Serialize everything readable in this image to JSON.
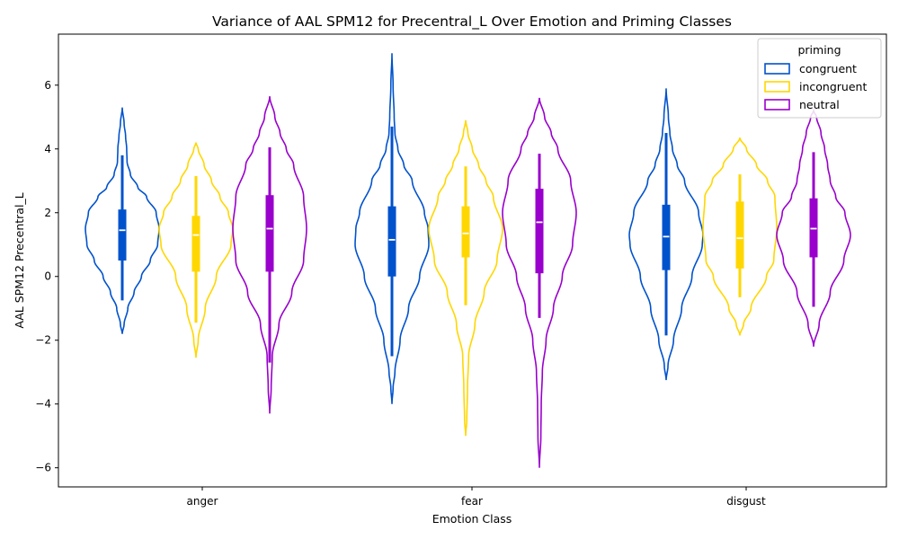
{
  "chart_data": {
    "type": "violin",
    "title": "Variance of AAL SPM12 for Precentral_L Over Emotion and Priming Classes",
    "xlabel": "Emotion Class",
    "ylabel": "AAL SPM12 Precentral_L",
    "ylim": [
      -6.6,
      7.6
    ],
    "yticks": [
      -6,
      -4,
      -2,
      0,
      2,
      4,
      6
    ],
    "grid": false,
    "categories": [
      "anger",
      "fear",
      "disgust"
    ],
    "legend": {
      "title": "priming",
      "placement": "top-right"
    },
    "series": [
      {
        "name": "congruent",
        "color": "#0052cc",
        "values": [
          {
            "category": "anger",
            "min": -1.8,
            "max": 5.3,
            "q1": 0.5,
            "median": 1.45,
            "q3": 2.1,
            "whisker_low": -0.75,
            "whisker_high": 3.8,
            "profile": [
              [
                -1.8,
                0.0
              ],
              [
                -1.5,
                0.05
              ],
              [
                -1.0,
                0.15
              ],
              [
                -0.5,
                0.32
              ],
              [
                0.0,
                0.52
              ],
              [
                0.5,
                0.76
              ],
              [
                1.0,
                0.96
              ],
              [
                1.5,
                1.0
              ],
              [
                2.0,
                0.92
              ],
              [
                2.5,
                0.66
              ],
              [
                2.8,
                0.42
              ],
              [
                3.2,
                0.22
              ],
              [
                3.6,
                0.13
              ],
              [
                4.0,
                0.12
              ],
              [
                4.4,
                0.09
              ],
              [
                4.8,
                0.05
              ],
              [
                5.3,
                0.0
              ]
            ]
          },
          {
            "category": "fear",
            "min": -4.0,
            "max": 7.0,
            "q1": 0.0,
            "median": 1.15,
            "q3": 2.2,
            "whisker_low": -2.5,
            "whisker_high": 4.7,
            "profile": [
              [
                -4.0,
                0.0
              ],
              [
                -3.5,
                0.03
              ],
              [
                -3.0,
                0.08
              ],
              [
                -2.0,
                0.22
              ],
              [
                -1.0,
                0.45
              ],
              [
                0.0,
                0.75
              ],
              [
                1.0,
                1.0
              ],
              [
                1.5,
                0.98
              ],
              [
                2.0,
                0.88
              ],
              [
                3.0,
                0.55
              ],
              [
                3.5,
                0.32
              ],
              [
                4.0,
                0.16
              ],
              [
                4.5,
                0.08
              ],
              [
                5.0,
                0.06
              ],
              [
                6.0,
                0.03
              ],
              [
                7.0,
                0.0
              ]
            ]
          },
          {
            "category": "disgust",
            "min": -3.25,
            "max": 5.9,
            "q1": 0.2,
            "median": 1.25,
            "q3": 2.25,
            "whisker_low": -1.85,
            "whisker_high": 4.5,
            "profile": [
              [
                -3.25,
                0.0
              ],
              [
                -2.8,
                0.05
              ],
              [
                -2.0,
                0.2
              ],
              [
                -1.0,
                0.42
              ],
              [
                0.0,
                0.7
              ],
              [
                1.0,
                0.98
              ],
              [
                1.3,
                1.0
              ],
              [
                2.0,
                0.88
              ],
              [
                3.0,
                0.5
              ],
              [
                3.5,
                0.3
              ],
              [
                4.0,
                0.17
              ],
              [
                4.5,
                0.1
              ],
              [
                5.0,
                0.06
              ],
              [
                5.9,
                0.0
              ]
            ]
          }
        ]
      },
      {
        "name": "incongruent",
        "color": "#ffd700",
        "values": [
          {
            "category": "anger",
            "min": -2.55,
            "max": 4.2,
            "q1": 0.15,
            "median": 1.3,
            "q3": 1.9,
            "whisker_low": -1.45,
            "whisker_high": 3.15,
            "profile": [
              [
                -2.55,
                0.0
              ],
              [
                -2.0,
                0.06
              ],
              [
                -1.0,
                0.25
              ],
              [
                0.0,
                0.55
              ],
              [
                1.0,
                0.95
              ],
              [
                1.5,
                1.0
              ],
              [
                2.0,
                0.88
              ],
              [
                2.5,
                0.65
              ],
              [
                3.0,
                0.42
              ],
              [
                3.5,
                0.22
              ],
              [
                4.0,
                0.06
              ],
              [
                4.2,
                0.0
              ]
            ]
          },
          {
            "category": "fear",
            "min": -5.0,
            "max": 4.9,
            "q1": 0.6,
            "median": 1.35,
            "q3": 2.2,
            "whisker_low": -0.9,
            "whisker_high": 3.45,
            "profile": [
              [
                -5.0,
                0.0
              ],
              [
                -4.5,
                0.03
              ],
              [
                -3.5,
                0.05
              ],
              [
                -2.5,
                0.08
              ],
              [
                -1.5,
                0.25
              ],
              [
                -0.5,
                0.5
              ],
              [
                0.5,
                0.85
              ],
              [
                1.5,
                1.0
              ],
              [
                2.5,
                0.75
              ],
              [
                3.0,
                0.55
              ],
              [
                3.5,
                0.35
              ],
              [
                4.0,
                0.18
              ],
              [
                4.5,
                0.06
              ],
              [
                4.9,
                0.0
              ]
            ]
          },
          {
            "category": "disgust",
            "min": -1.85,
            "max": 4.35,
            "q1": 0.25,
            "median": 1.2,
            "q3": 2.35,
            "whisker_low": -0.65,
            "whisker_high": 3.2,
            "profile": [
              [
                -1.85,
                0.0
              ],
              [
                -1.5,
                0.1
              ],
              [
                -1.0,
                0.3
              ],
              [
                0.0,
                0.72
              ],
              [
                0.5,
                0.92
              ],
              [
                1.5,
                1.0
              ],
              [
                2.5,
                0.95
              ],
              [
                3.0,
                0.75
              ],
              [
                3.5,
                0.45
              ],
              [
                4.0,
                0.18
              ],
              [
                4.35,
                0.0
              ]
            ]
          }
        ]
      },
      {
        "name": "neutral",
        "color": "#9900cc",
        "values": [
          {
            "category": "anger",
            "min": -4.3,
            "max": 5.65,
            "q1": 0.15,
            "median": 1.5,
            "q3": 2.55,
            "whisker_low": -2.7,
            "whisker_high": 4.05,
            "profile": [
              [
                -4.3,
                0.0
              ],
              [
                -3.5,
                0.04
              ],
              [
                -2.5,
                0.07
              ],
              [
                -1.5,
                0.25
              ],
              [
                -0.5,
                0.6
              ],
              [
                0.5,
                0.92
              ],
              [
                1.5,
                1.0
              ],
              [
                2.5,
                0.92
              ],
              [
                3.5,
                0.65
              ],
              [
                4.0,
                0.45
              ],
              [
                4.5,
                0.28
              ],
              [
                5.0,
                0.14
              ],
              [
                5.65,
                0.0
              ]
            ]
          },
          {
            "category": "fear",
            "min": -6.0,
            "max": 5.6,
            "q1": 0.1,
            "median": 1.7,
            "q3": 2.75,
            "whisker_low": -1.3,
            "whisker_high": 3.85,
            "profile": [
              [
                -6.0,
                0.0
              ],
              [
                -5.0,
                0.04
              ],
              [
                -4.0,
                0.05
              ],
              [
                -3.0,
                0.08
              ],
              [
                -2.0,
                0.18
              ],
              [
                -1.0,
                0.38
              ],
              [
                0.0,
                0.62
              ],
              [
                1.0,
                0.9
              ],
              [
                2.0,
                1.0
              ],
              [
                3.0,
                0.85
              ],
              [
                4.0,
                0.5
              ],
              [
                4.5,
                0.32
              ],
              [
                5.0,
                0.14
              ],
              [
                5.6,
                0.0
              ]
            ]
          },
          {
            "category": "disgust",
            "min": -2.2,
            "max": 5.2,
            "q1": 0.6,
            "median": 1.5,
            "q3": 2.45,
            "whisker_low": -0.95,
            "whisker_high": 3.9,
            "profile": [
              [
                -2.2,
                0.0
              ],
              [
                -1.5,
                0.15
              ],
              [
                -0.5,
                0.45
              ],
              [
                0.5,
                0.82
              ],
              [
                1.3,
                1.0
              ],
              [
                2.0,
                0.85
              ],
              [
                2.5,
                0.6
              ],
              [
                3.0,
                0.45
              ],
              [
                3.5,
                0.38
              ],
              [
                4.0,
                0.3
              ],
              [
                4.5,
                0.2
              ],
              [
                5.0,
                0.08
              ],
              [
                5.2,
                0.0
              ]
            ]
          }
        ]
      }
    ]
  }
}
